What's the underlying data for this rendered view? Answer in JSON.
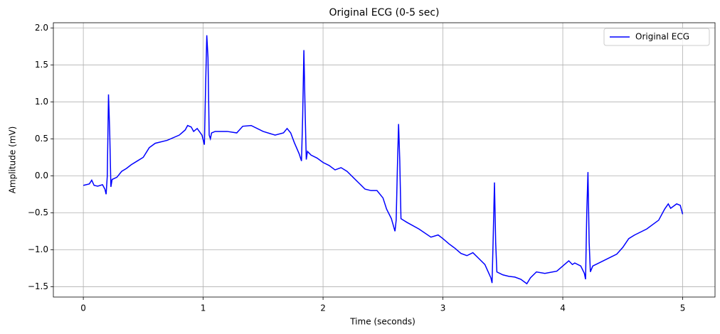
{
  "chart_data": {
    "type": "line",
    "title": "Original ECG (0-5 sec)",
    "x_label": "Time (seconds)",
    "y_label": "Amplitude (mV)",
    "x": [
      0,
      0.05,
      0.07,
      0.09,
      0.12,
      0.16,
      0.18,
      0.19,
      0.2,
      0.21,
      0.22,
      0.23,
      0.24,
      0.28,
      0.32,
      0.36,
      0.4,
      0.45,
      0.5,
      0.55,
      0.6,
      0.7,
      0.8,
      0.85,
      0.87,
      0.9,
      0.92,
      0.95,
      0.99,
      1.01,
      1.02,
      1.03,
      1.04,
      1.05,
      1.06,
      1.07,
      1.1,
      1.2,
      1.28,
      1.33,
      1.4,
      1.5,
      1.6,
      1.67,
      1.7,
      1.73,
      1.76,
      1.8,
      1.82,
      1.83,
      1.84,
      1.85,
      1.86,
      1.87,
      1.9,
      1.95,
      2.0,
      2.05,
      2.1,
      2.15,
      2.2,
      2.3,
      2.35,
      2.4,
      2.45,
      2.5,
      2.53,
      2.57,
      2.6,
      2.61,
      2.62,
      2.63,
      2.64,
      2.65,
      2.7,
      2.8,
      2.9,
      2.96,
      3.0,
      3.05,
      3.1,
      3.15,
      3.2,
      3.25,
      3.3,
      3.35,
      3.4,
      3.41,
      3.42,
      3.43,
      3.44,
      3.45,
      3.5,
      3.55,
      3.6,
      3.65,
      3.7,
      3.73,
      3.78,
      3.85,
      3.95,
      4.0,
      4.05,
      4.08,
      4.1,
      4.15,
      4.18,
      4.19,
      4.2,
      4.21,
      4.22,
      4.23,
      4.25,
      4.3,
      4.4,
      4.45,
      4.5,
      4.55,
      4.6,
      4.7,
      4.8,
      4.85,
      4.88,
      4.9,
      4.95,
      4.98,
      5.0
    ],
    "series": [
      {
        "name": "Original ECG",
        "color": "#0000ff",
        "values": [
          -0.13,
          -0.11,
          -0.06,
          -0.13,
          -0.14,
          -0.12,
          -0.18,
          -0.25,
          0.0,
          1.1,
          0.6,
          -0.15,
          -0.05,
          -0.02,
          0.06,
          0.1,
          0.15,
          0.2,
          0.25,
          0.38,
          0.44,
          0.48,
          0.55,
          0.62,
          0.68,
          0.66,
          0.6,
          0.64,
          0.55,
          0.42,
          1.2,
          1.9,
          1.6,
          0.55,
          0.5,
          0.58,
          0.6,
          0.6,
          0.58,
          0.67,
          0.68,
          0.6,
          0.55,
          0.58,
          0.64,
          0.58,
          0.45,
          0.3,
          0.2,
          0.8,
          1.7,
          0.9,
          0.22,
          0.33,
          0.28,
          0.24,
          0.18,
          0.14,
          0.08,
          0.11,
          0.06,
          -0.1,
          -0.18,
          -0.2,
          -0.2,
          -0.3,
          -0.45,
          -0.58,
          -0.75,
          -0.6,
          0.1,
          0.7,
          0.2,
          -0.58,
          -0.63,
          -0.72,
          -0.83,
          -0.8,
          -0.85,
          -0.92,
          -0.98,
          -1.05,
          -1.08,
          -1.04,
          -1.12,
          -1.2,
          -1.38,
          -1.45,
          -0.8,
          -0.09,
          -0.9,
          -1.3,
          -1.34,
          -1.36,
          -1.37,
          -1.4,
          -1.46,
          -1.38,
          -1.3,
          -1.32,
          -1.29,
          -1.22,
          -1.15,
          -1.2,
          -1.18,
          -1.22,
          -1.32,
          -1.4,
          -0.5,
          0.05,
          -0.9,
          -1.3,
          -1.22,
          -1.18,
          -1.1,
          -1.06,
          -0.97,
          -0.85,
          -0.8,
          -0.72,
          -0.6,
          -0.45,
          -0.38,
          -0.44,
          -0.38,
          -0.4,
          -0.52
        ]
      }
    ],
    "xlim": [
      -0.25,
      5.27
    ],
    "ylim": [
      -1.64,
      2.07
    ],
    "xticks": [
      0,
      1,
      2,
      3,
      4,
      5
    ],
    "yticks": [
      {
        "value": -1.5,
        "label": "−1.5"
      },
      {
        "value": -1,
        "label": "−1.0"
      },
      {
        "value": -0.5,
        "label": "−0.5"
      },
      {
        "value": 0,
        "label": "0.0"
      },
      0.5,
      {
        "value": 1,
        "label": "1.0"
      },
      1.5,
      {
        "value": 2,
        "label": "2.0"
      }
    ],
    "grid": true,
    "legend": "upper right"
  }
}
